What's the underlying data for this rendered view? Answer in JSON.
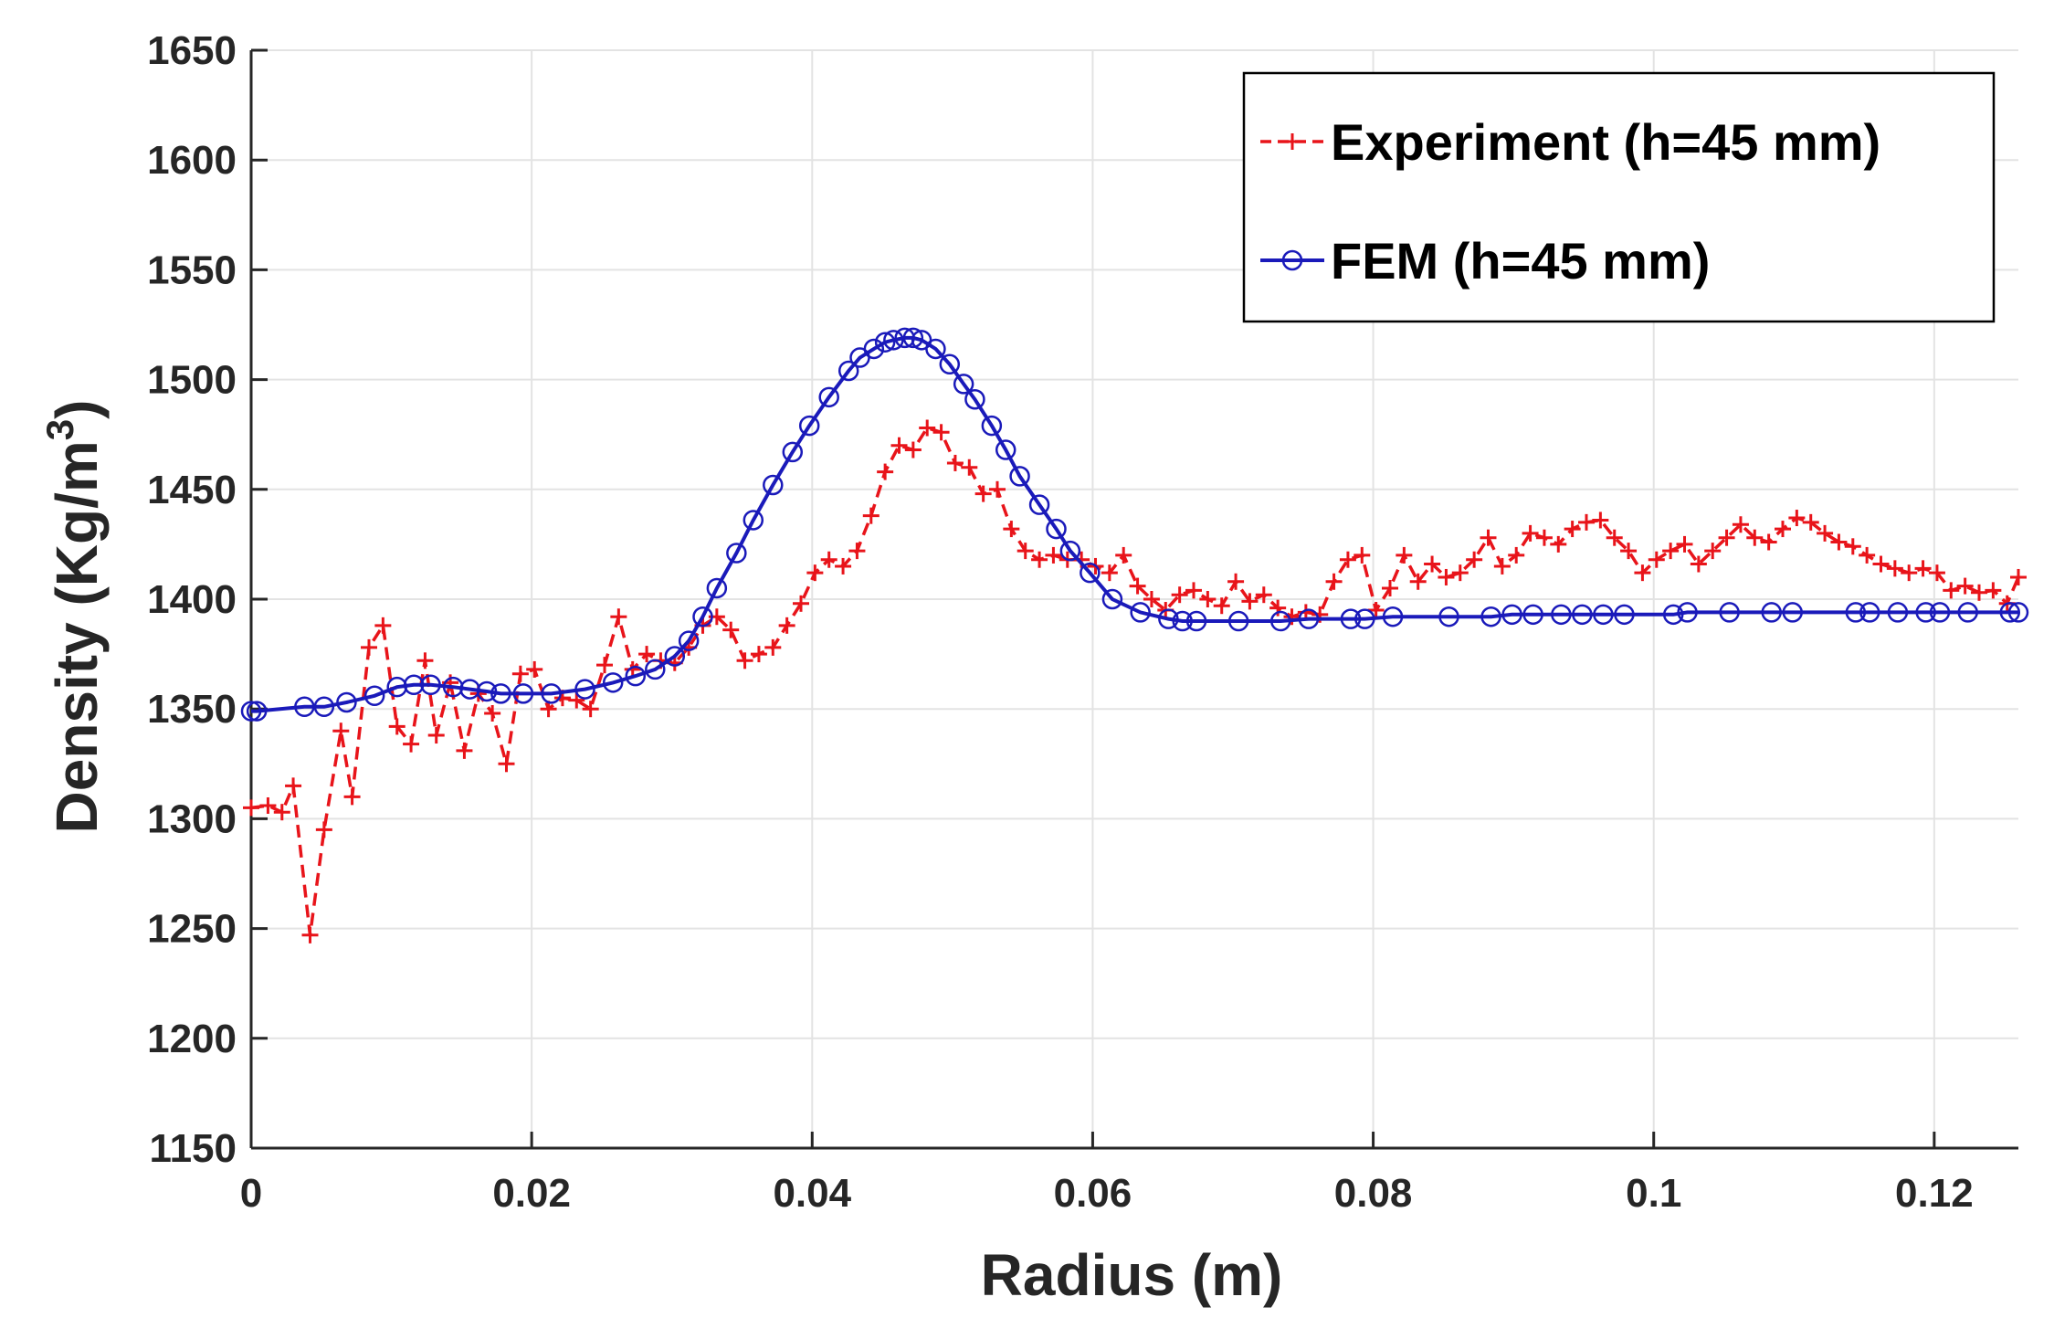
{
  "colors": {
    "experiment": "#e8141a",
    "fem": "#1a1aba",
    "grid": "#e3e3e3",
    "axis": "#262626"
  },
  "chart_data": {
    "type": "line",
    "title": "",
    "xlabel": "Radius (m)",
    "ylabel_main": "Density (Kg/m",
    "ylabel_sup": "3",
    "ylabel_close": ")",
    "xlim": [
      0,
      0.126
    ],
    "ylim": [
      1150,
      1650
    ],
    "xticks": [
      0,
      0.02,
      0.04,
      0.06,
      0.08,
      0.1,
      0.12
    ],
    "xtick_labels": [
      "0",
      "0.02",
      "0.04",
      "0.06",
      "0.08",
      "0.1",
      "0.12"
    ],
    "yticks": [
      1150,
      1200,
      1250,
      1300,
      1350,
      1400,
      1450,
      1500,
      1550,
      1600,
      1650
    ],
    "ytick_labels": [
      "1150",
      "1200",
      "1250",
      "1300",
      "1350",
      "1400",
      "1450",
      "1500",
      "1550",
      "1600",
      "1650"
    ],
    "grid": true,
    "legend_position": "top-right",
    "series": [
      {
        "name": "Experiment (h=45 mm)",
        "style": "dashed",
        "marker": "plus",
        "x": [
          0,
          0.0012,
          0.0022,
          0.003,
          0.0042,
          0.0052,
          0.0064,
          0.0072,
          0.0084,
          0.0094,
          0.0104,
          0.0114,
          0.0124,
          0.0132,
          0.0142,
          0.0152,
          0.0162,
          0.0172,
          0.0182,
          0.0192,
          0.0202,
          0.0212,
          0.0222,
          0.0232,
          0.0242,
          0.0252,
          0.0262,
          0.0272,
          0.0282,
          0.0292,
          0.0302,
          0.0312,
          0.0322,
          0.0332,
          0.0342,
          0.0352,
          0.0362,
          0.0372,
          0.0382,
          0.0392,
          0.0402,
          0.0412,
          0.0422,
          0.0432,
          0.0442,
          0.0452,
          0.0462,
          0.0472,
          0.0482,
          0.0492,
          0.0502,
          0.0512,
          0.0522,
          0.0532,
          0.0542,
          0.0552,
          0.0562,
          0.0572,
          0.0582,
          0.0592,
          0.0602,
          0.0612,
          0.0622,
          0.0632,
          0.0642,
          0.0652,
          0.0662,
          0.0672,
          0.0682,
          0.0692,
          0.0702,
          0.0712,
          0.0722,
          0.0732,
          0.0742,
          0.0752,
          0.0762,
          0.0772,
          0.0782,
          0.0792,
          0.0802,
          0.0812,
          0.0822,
          0.0832,
          0.0842,
          0.0852,
          0.0862,
          0.0872,
          0.0882,
          0.0892,
          0.0902,
          0.0912,
          0.0922,
          0.0932,
          0.0942,
          0.0952,
          0.0962,
          0.0972,
          0.0982,
          0.0992,
          0.1002,
          0.1012,
          0.1022,
          0.1032,
          0.1042,
          0.1052,
          0.1062,
          0.1072,
          0.1082,
          0.1092,
          0.1102,
          0.1112,
          0.1122,
          0.1132,
          0.1142,
          0.1152,
          0.1162,
          0.1172,
          0.1182,
          0.1192,
          0.1202,
          0.1212,
          0.1222,
          0.1232,
          0.1242,
          0.1252,
          0.126
        ],
        "y": [
          1305,
          1306,
          1303,
          1315,
          1247,
          1295,
          1340,
          1310,
          1378,
          1388,
          1342,
          1334,
          1372,
          1338,
          1362,
          1331,
          1357,
          1348,
          1325,
          1366,
          1368,
          1350,
          1355,
          1354,
          1350,
          1370,
          1392,
          1368,
          1375,
          1372,
          1371,
          1378,
          1388,
          1392,
          1386,
          1372,
          1375,
          1378,
          1388,
          1398,
          1412,
          1418,
          1415,
          1422,
          1438,
          1458,
          1470,
          1468,
          1478,
          1476,
          1462,
          1460,
          1448,
          1450,
          1432,
          1422,
          1418,
          1420,
          1418,
          1418,
          1415,
          1412,
          1420,
          1406,
          1400,
          1395,
          1402,
          1404,
          1400,
          1397,
          1408,
          1399,
          1402,
          1396,
          1392,
          1394,
          1393,
          1408,
          1418,
          1420,
          1395,
          1405,
          1420,
          1408,
          1416,
          1410,
          1412,
          1418,
          1428,
          1415,
          1420,
          1430,
          1428,
          1425,
          1432,
          1435,
          1436,
          1428,
          1422,
          1412,
          1418,
          1422,
          1425,
          1416,
          1422,
          1428,
          1434,
          1428,
          1426,
          1432,
          1437,
          1435,
          1430,
          1426,
          1424,
          1420,
          1416,
          1414,
          1412,
          1414,
          1412,
          1404,
          1406,
          1403,
          1404,
          1398,
          1410
        ]
      },
      {
        "name": "FEM (h=45 mm)",
        "style": "solid",
        "marker": "circle",
        "x": [
          0,
          0.0004,
          0.0038,
          0.0052,
          0.0068,
          0.0088,
          0.0104,
          0.0116,
          0.0128,
          0.0144,
          0.0156,
          0.0168,
          0.0178,
          0.0194,
          0.0214,
          0.0238,
          0.0258,
          0.0274,
          0.0288,
          0.0302,
          0.0312,
          0.0322,
          0.0332,
          0.0346,
          0.0358,
          0.0372,
          0.0386,
          0.0398,
          0.0412,
          0.0426,
          0.0434,
          0.0444,
          0.0452,
          0.0458,
          0.0466,
          0.0472,
          0.0478,
          0.0488,
          0.0498,
          0.0508,
          0.0516,
          0.0528,
          0.0538,
          0.0548,
          0.0562,
          0.0574,
          0.0584,
          0.0598,
          0.0614,
          0.0634,
          0.0654,
          0.0664,
          0.0674,
          0.0704,
          0.0734,
          0.0754,
          0.0784,
          0.0794,
          0.0814,
          0.0854,
          0.0884,
          0.0899,
          0.0914,
          0.0934,
          0.0949,
          0.0964,
          0.0979,
          0.1014,
          0.1024,
          0.1054,
          0.1084,
          0.1099,
          0.1144,
          0.1154,
          0.1174,
          0.1194,
          0.1204,
          0.1224,
          0.1254,
          0.126
        ],
        "y": [
          1349,
          1349,
          1351,
          1351,
          1353,
          1356,
          1360,
          1361,
          1361,
          1360,
          1359,
          1358,
          1357,
          1357,
          1357,
          1359,
          1362,
          1365,
          1368,
          1374,
          1381,
          1392,
          1405,
          1421,
          1436,
          1452,
          1467,
          1479,
          1492,
          1504,
          1510,
          1514,
          1517,
          1518,
          1519,
          1519,
          1518,
          1514,
          1507,
          1498,
          1491,
          1479,
          1468,
          1456,
          1443,
          1432,
          1422,
          1412,
          1400,
          1394,
          1391,
          1390,
          1390,
          1390,
          1390,
          1391,
          1391,
          1391,
          1392,
          1392,
          1392,
          1393,
          1393,
          1393,
          1393,
          1393,
          1393,
          1393,
          1394,
          1394,
          1394,
          1394,
          1394,
          1394,
          1394,
          1394,
          1394,
          1394,
          1394,
          1394
        ]
      }
    ]
  }
}
